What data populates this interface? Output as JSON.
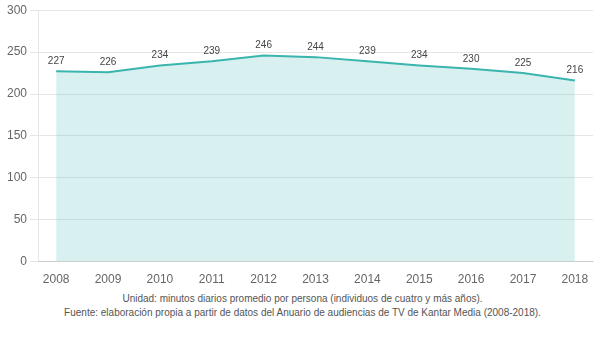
{
  "chart_data": {
    "type": "area",
    "x": [
      2008,
      2009,
      2010,
      2011,
      2012,
      2013,
      2014,
      2015,
      2016,
      2017,
      2018
    ],
    "values": [
      227,
      226,
      234,
      239,
      246,
      244,
      239,
      234,
      230,
      225,
      216
    ],
    "color": "#3ab5ad",
    "xlim": [
      2007.65,
      2018.35
    ],
    "xticks": [
      2008,
      2009,
      2010,
      2011,
      2012,
      2013,
      2014,
      2015,
      2016,
      2017,
      2018
    ],
    "ylim": [
      0,
      300
    ],
    "yticks": [
      0,
      50,
      100,
      150,
      200,
      250,
      300
    ],
    "grid": true,
    "data_labels": true,
    "annotations": [
      "Unidad: minutos diarios promedio por persona (individuos de cuatro y más años).",
      "Fuente: elaboración propia a partir de datos del Anuario de audiencias de TV de Kantar Media (2008-2018)."
    ]
  }
}
